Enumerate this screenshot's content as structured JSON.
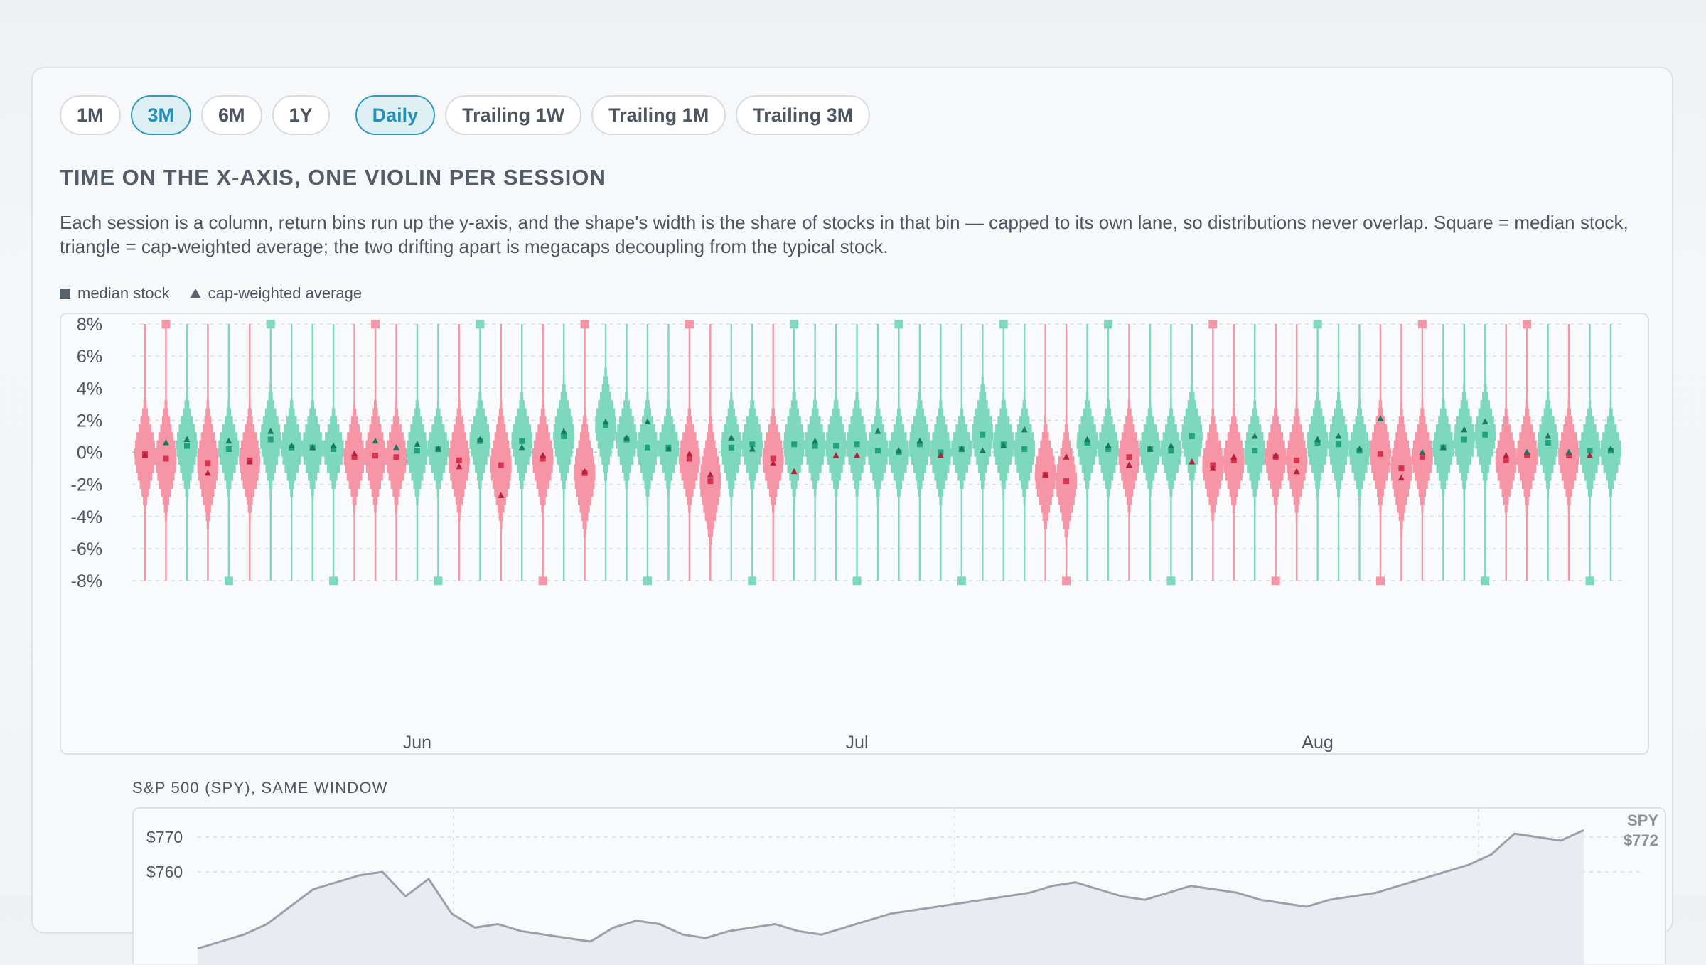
{
  "controls": {
    "periods": [
      {
        "label": "1M",
        "active": false
      },
      {
        "label": "3M",
        "active": true
      },
      {
        "label": "6M",
        "active": false
      },
      {
        "label": "1Y",
        "active": false
      }
    ],
    "windows": [
      {
        "label": "Daily",
        "active": true
      },
      {
        "label": "Trailing 1W",
        "active": false
      },
      {
        "label": "Trailing 1M",
        "active": false
      },
      {
        "label": "Trailing 3M",
        "active": false
      }
    ]
  },
  "heading": "TIME ON THE X-AXIS, ONE VIOLIN PER SESSION",
  "description": "Each session is a column, return bins run up the y-axis, and the shape's width is the share of stocks in that bin — capped to its own lane, so distributions never overlap. Square = median stock, triangle = cap-weighted average; the two drifting apart is megacaps decoupling from the typical stock.",
  "legend": {
    "median_label": "median stock",
    "cap_label": "cap-weighted average"
  },
  "colors": {
    "up": "#7dd8bc",
    "down": "#f595a6",
    "up_dark": "#1fa37c",
    "down_dark": "#d8344f",
    "grid": "#d9dde3",
    "axis_text": "#4d5560",
    "spy_line": "#9aa1ab",
    "spy_fill": "#e8ebef"
  },
  "chart_data": [
    {
      "type": "violin",
      "ylabel": "",
      "ylim": [
        -8,
        8
      ],
      "y_ticks": [
        "8%",
        "6%",
        "4%",
        "2%",
        "0%",
        "-2%",
        "-4%",
        "-6%",
        "-8%"
      ],
      "y_tick_values": [
        8,
        6,
        4,
        2,
        0,
        -2,
        -4,
        -6,
        -8
      ],
      "x_month_labels": [
        {
          "label": "Jun",
          "session": 13
        },
        {
          "label": "Jul",
          "session": 34
        },
        {
          "label": "Aug",
          "session": 56
        }
      ],
      "sessions": [
        {
          "median": -0.1,
          "cap": -0.2,
          "spread": 1.6
        },
        {
          "median": -0.4,
          "cap": 0.6,
          "spread": 1.7
        },
        {
          "median": 0.4,
          "cap": 0.8,
          "spread": 1.5
        },
        {
          "median": -0.7,
          "cap": -1.3,
          "spread": 1.8
        },
        {
          "median": 0.2,
          "cap": 0.7,
          "spread": 1.3
        },
        {
          "median": -0.5,
          "cap": -0.6,
          "spread": 1.6
        },
        {
          "median": 0.8,
          "cap": 1.3,
          "spread": 1.5
        },
        {
          "median": 0.3,
          "cap": 0.4,
          "spread": 1.4
        },
        {
          "median": 0.3,
          "cap": 0.3,
          "spread": 1.4
        },
        {
          "median": 0.2,
          "cap": 0.4,
          "spread": 1.2
        },
        {
          "median": -0.3,
          "cap": -0.1,
          "spread": 1.5
        },
        {
          "median": -0.2,
          "cap": 0.7,
          "spread": 1.6
        },
        {
          "median": -0.3,
          "cap": 0.3,
          "spread": 1.5
        },
        {
          "median": 0.1,
          "cap": 0.5,
          "spread": 1.5
        },
        {
          "median": 0.2,
          "cap": 0.2,
          "spread": 1.3
        },
        {
          "median": -0.5,
          "cap": -0.9,
          "spread": 1.7
        },
        {
          "median": 0.7,
          "cap": 0.8,
          "spread": 1.4
        },
        {
          "median": -0.8,
          "cap": -2.7,
          "spread": 1.8
        },
        {
          "median": 0.7,
          "cap": 0.3,
          "spread": 1.4
        },
        {
          "median": -0.4,
          "cap": -0.2,
          "spread": 1.6
        },
        {
          "median": 1.0,
          "cap": 1.3,
          "spread": 1.6
        },
        {
          "median": -1.3,
          "cap": -1.2,
          "spread": 1.8
        },
        {
          "median": 1.7,
          "cap": 1.9,
          "spread": 1.6
        },
        {
          "median": 0.8,
          "cap": 0.9,
          "spread": 1.4
        },
        {
          "median": 0.3,
          "cap": 1.9,
          "spread": 1.5
        },
        {
          "median": 0.3,
          "cap": 0.2,
          "spread": 1.3
        },
        {
          "median": -0.4,
          "cap": -0.1,
          "spread": 1.5
        },
        {
          "median": -1.8,
          "cap": -1.4,
          "spread": 1.9
        },
        {
          "median": 0.3,
          "cap": 0.9,
          "spread": 1.5
        },
        {
          "median": 0.5,
          "cap": 0.2,
          "spread": 1.4
        },
        {
          "median": -0.4,
          "cap": -0.7,
          "spread": 1.5
        },
        {
          "median": 0.5,
          "cap": -1.2,
          "spread": 1.6
        },
        {
          "median": 0.4,
          "cap": 0.7,
          "spread": 1.4
        },
        {
          "median": 0.4,
          "cap": -0.2,
          "spread": 1.5
        },
        {
          "median": 0.5,
          "cap": -0.2,
          "spread": 1.5
        },
        {
          "median": 0.1,
          "cap": 1.3,
          "spread": 1.4
        },
        {
          "median": 0.0,
          "cap": 0.1,
          "spread": 1.3
        },
        {
          "median": 0.5,
          "cap": 0.7,
          "spread": 1.5
        },
        {
          "median": 0.0,
          "cap": -0.2,
          "spread": 1.5
        },
        {
          "median": 0.2,
          "cap": 0.2,
          "spread": 1.2
        },
        {
          "median": 1.1,
          "cap": 0.1,
          "spread": 1.6
        },
        {
          "median": 0.5,
          "cap": 0.4,
          "spread": 1.4
        },
        {
          "median": 0.2,
          "cap": 1.4,
          "spread": 1.5
        },
        {
          "median": -1.4,
          "cap": -1.4,
          "spread": 1.6
        },
        {
          "median": -1.8,
          "cap": -0.3,
          "spread": 1.7
        },
        {
          "median": 0.6,
          "cap": 0.8,
          "spread": 1.4
        },
        {
          "median": 0.2,
          "cap": 0.4,
          "spread": 1.4
        },
        {
          "median": -0.3,
          "cap": -0.8,
          "spread": 1.6
        },
        {
          "median": 0.2,
          "cap": 0.2,
          "spread": 1.3
        },
        {
          "median": 0.1,
          "cap": 0.4,
          "spread": 1.3
        },
        {
          "median": 1.0,
          "cap": -0.6,
          "spread": 1.5
        },
        {
          "median": -0.8,
          "cap": -1.0,
          "spread": 1.6
        },
        {
          "median": -0.5,
          "cap": -0.3,
          "spread": 1.5
        },
        {
          "median": 0.1,
          "cap": 1.0,
          "spread": 1.4
        },
        {
          "median": -0.3,
          "cap": -0.2,
          "spread": 1.5
        },
        {
          "median": -0.5,
          "cap": -1.2,
          "spread": 1.6
        },
        {
          "median": 0.6,
          "cap": 0.8,
          "spread": 1.5
        },
        {
          "median": 0.5,
          "cap": 1.0,
          "spread": 1.5
        },
        {
          "median": 0.1,
          "cap": 0.2,
          "spread": 1.4
        },
        {
          "median": -0.1,
          "cap": 2.1,
          "spread": 1.6
        },
        {
          "median": -1.0,
          "cap": -1.6,
          "spread": 1.8
        },
        {
          "median": -0.3,
          "cap": 0.0,
          "spread": 1.5
        },
        {
          "median": 0.3,
          "cap": 0.3,
          "spread": 1.4
        },
        {
          "median": 0.8,
          "cap": 1.4,
          "spread": 1.5
        },
        {
          "median": 1.1,
          "cap": 1.9,
          "spread": 1.5
        },
        {
          "median": -0.5,
          "cap": -0.2,
          "spread": 1.5
        },
        {
          "median": -0.2,
          "cap": 0.0,
          "spread": 1.5
        },
        {
          "median": 0.6,
          "cap": 1.0,
          "spread": 1.4
        },
        {
          "median": -0.2,
          "cap": 0.0,
          "spread": 1.5
        },
        {
          "median": 0.1,
          "cap": -0.2,
          "spread": 1.4
        },
        {
          "median": 0.1,
          "cap": 0.2,
          "spread": 1.3
        }
      ]
    },
    {
      "type": "line",
      "title": "S&P 500 (SPY), SAME WINDOW",
      "y_ticks": [
        "$770",
        "$760"
      ],
      "y_tick_values": [
        770,
        760
      ],
      "end_label": "SPY",
      "end_value_label": "$772",
      "values": [
        738,
        740,
        742,
        745,
        750,
        755,
        757,
        759,
        760,
        753,
        758,
        748,
        744,
        745,
        743,
        742,
        741,
        740,
        744,
        746,
        745,
        742,
        741,
        743,
        744,
        745,
        743,
        742,
        744,
        746,
        748,
        749,
        750,
        751,
        752,
        753,
        754,
        756,
        757,
        755,
        753,
        752,
        754,
        756,
        755,
        754,
        752,
        751,
        750,
        752,
        753,
        754,
        756,
        758,
        760,
        762,
        765,
        771,
        770,
        769,
        772
      ]
    }
  ]
}
